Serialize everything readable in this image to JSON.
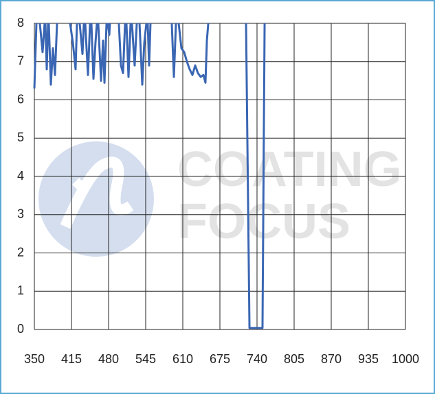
{
  "chart_data": {
    "type": "line",
    "watermark_text": [
      "COATING",
      "FOCUS"
    ],
    "xlim": [
      350,
      1000
    ],
    "xticks": [
      350,
      415,
      480,
      545,
      610,
      675,
      740,
      805,
      870,
      935,
      1000
    ],
    "ylim": [
      0,
      8
    ],
    "yticks": [
      0,
      1,
      2,
      3,
      4,
      5,
      6,
      7,
      8
    ],
    "grid": true,
    "x": [
      350,
      353.6,
      null,
      359.6,
      364.4,
      368,
      null,
      369.3,
      371.7,
      374,
      null,
      375.3,
      378.9,
      382.5,
      386.1,
      389.7,
      null,
      412.6,
      417.4,
      422.2,
      424.6,
      null,
      429.4,
      434.3,
      436.7,
      null,
      439.1,
      443.9,
      447.5,
      null,
      449.9,
      453.5,
      457.1,
      459.5,
      null,
      461.9,
      466.8,
      470.4,
      472.8,
      476.4,
      null,
      478.8,
      481.2,
      482.4,
      null,
      498,
      501.7,
      505.3,
      508.9,
      null,
      511.3,
      514.9,
      518.5,
      null,
      520.9,
      525.7,
      529.4,
      null,
      534.2,
      539,
      542.6,
      546.2,
      null,
      548.6,
      551,
      553.4,
      null,
      590.7,
      594.4,
      598,
      null,
      602.8,
      607.6,
      612.4,
      617.2,
      622,
      626.9,
      631.7,
      636.5,
      641.3,
      646.1,
      649.7,
      652.2,
      654.6,
      null,
      720.8,
      726.8,
      749.6,
      753.3
    ],
    "series": [
      {
        "color": "#3a66b3",
        "values": [
          6.3,
          8,
          null,
          8,
          7.25,
          8,
          null,
          8,
          6.8,
          8,
          null,
          8,
          6.4,
          7.35,
          6.65,
          8,
          null,
          8,
          7.5,
          6.8,
          8,
          null,
          8,
          7.2,
          8,
          null,
          8,
          6.65,
          8,
          null,
          8,
          6.55,
          7.5,
          8,
          null,
          8,
          6.5,
          7.55,
          6.45,
          8,
          null,
          8,
          7.7,
          8,
          null,
          8,
          6.9,
          6.7,
          8,
          null,
          8,
          6.6,
          8,
          null,
          8,
          6.9,
          8,
          null,
          8,
          6.4,
          7.5,
          8,
          null,
          8,
          6.9,
          8,
          null,
          8,
          6.6,
          8,
          null,
          8,
          7.35,
          7.25,
          7,
          6.8,
          6.65,
          6.9,
          6.7,
          6.6,
          6.65,
          6.45,
          7.55,
          8,
          null,
          8,
          0.04,
          0.04,
          8
        ]
      }
    ]
  }
}
